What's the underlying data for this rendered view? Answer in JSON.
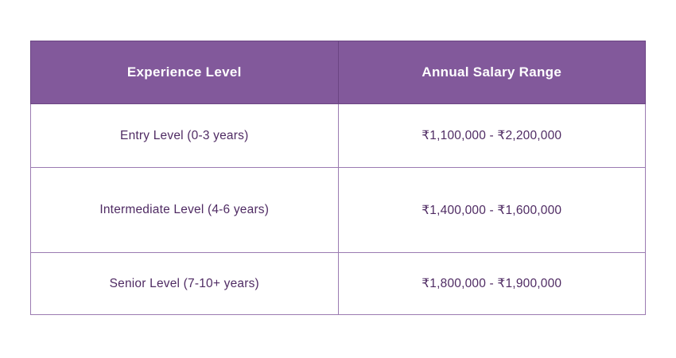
{
  "colors": {
    "header_bg": "#82599B",
    "header_text": "#FFFFFF",
    "header_border": "#6B4583",
    "body_border": "#9B7BB1",
    "body_text": "#4F2B63",
    "page_bg": "#FFFFFF"
  },
  "table": {
    "columns": [
      "Experience Level",
      "Annual Salary Range"
    ],
    "rows": [
      [
        "Entry Level (0-3 years)",
        "₹1,100,000 - ₹2,200,000"
      ],
      [
        "Intermediate Level (4-6 years)",
        "₹1,400,000 - ₹1,600,000"
      ],
      [
        "Senior Level (7-10+ years)",
        "₹1,800,000 - ₹1,900,000"
      ]
    ]
  },
  "chart_data": {
    "type": "table",
    "columns": [
      "Experience Level",
      "Annual Salary Range"
    ],
    "rows": [
      [
        "Entry Level (0-3 years)",
        "₹1,100,000 - ₹2,200,000"
      ],
      [
        "Intermediate Level (4-6 years)",
        "₹1,400,000 - ₹1,600,000"
      ],
      [
        "Senior Level (7-10+ years)",
        "₹1,800,000 - ₹1,900,000"
      ]
    ],
    "salary_ranges_inr": [
      {
        "level": "Entry Level",
        "years": "0-3",
        "min": 1100000,
        "max": 2200000
      },
      {
        "level": "Intermediate Level",
        "years": "4-6",
        "min": 1400000,
        "max": 1600000
      },
      {
        "level": "Senior Level",
        "years": "7-10+",
        "min": 1800000,
        "max": 1900000
      }
    ],
    "title": "",
    "legend": false,
    "grid": true
  }
}
